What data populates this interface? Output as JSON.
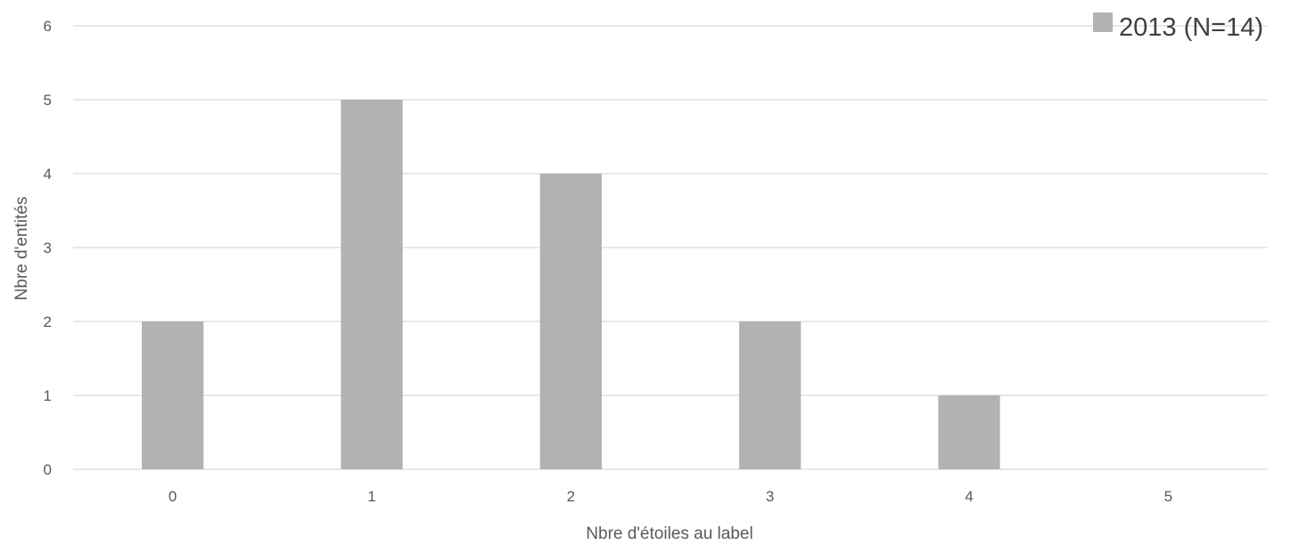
{
  "chart_data": {
    "type": "bar",
    "categories": [
      "0",
      "1",
      "2",
      "3",
      "4",
      "5"
    ],
    "series": [
      {
        "name": "2013 (N=14)",
        "values": [
          2,
          5,
          4,
          2,
          1,
          0
        ],
        "color": "#b2b2b2"
      }
    ],
    "xlabel": "Nbre d'étoiles au label",
    "ylabel": "Nbre d'entités",
    "ylim": [
      0,
      6
    ],
    "yticks": [
      0,
      1,
      2,
      3,
      4,
      5,
      6
    ],
    "grid": true,
    "gridline_color": "#d9d9d9",
    "legend_position": "top-right"
  }
}
